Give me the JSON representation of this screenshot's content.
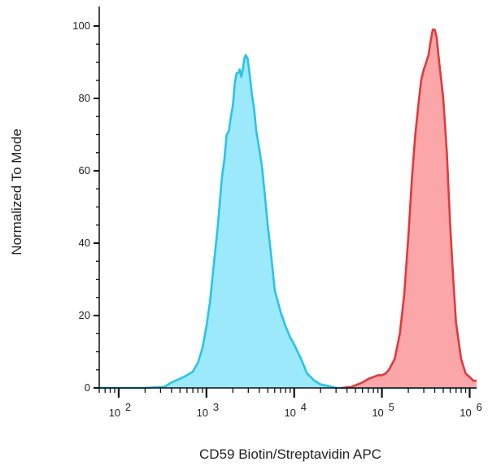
{
  "chart_data": {
    "type": "area",
    "title": "",
    "xlabel": "CD59 Biotin/Streptavidin APC",
    "ylabel": "Normalized To Mode",
    "xscale": "log",
    "xlim": [
      60,
      1200000
    ],
    "ylim": [
      0,
      100
    ],
    "yticks": [
      0,
      20,
      40,
      60,
      80,
      100
    ],
    "xtick_labels": [
      {
        "base": "10",
        "exp": "2",
        "value": 100
      },
      {
        "base": "10",
        "exp": "3",
        "value": 1000
      },
      {
        "base": "10",
        "exp": "4",
        "value": 10000
      },
      {
        "base": "10",
        "exp": "5",
        "value": 100000
      },
      {
        "base": "10",
        "exp": "6",
        "value": 1000000
      }
    ],
    "grid": false,
    "legend": false,
    "series": [
      {
        "color": "#29c4e6",
        "fill": "#9be9fb",
        "points": [
          [
            60,
            0
          ],
          [
            200,
            0
          ],
          [
            330,
            0.3
          ],
          [
            400,
            1.5
          ],
          [
            550,
            3
          ],
          [
            700,
            4.5
          ],
          [
            800,
            7
          ],
          [
            900,
            11
          ],
          [
            1000,
            17
          ],
          [
            1100,
            24
          ],
          [
            1200,
            33
          ],
          [
            1350,
            45
          ],
          [
            1500,
            58
          ],
          [
            1600,
            63
          ],
          [
            1700,
            70
          ],
          [
            1800,
            71
          ],
          [
            1900,
            75
          ],
          [
            2000,
            78
          ],
          [
            2100,
            84
          ],
          [
            2200,
            87
          ],
          [
            2300,
            87
          ],
          [
            2400,
            88
          ],
          [
            2500,
            86
          ],
          [
            2600,
            88
          ],
          [
            2700,
            91
          ],
          [
            2800,
            92
          ],
          [
            2950,
            91
          ],
          [
            3100,
            87
          ],
          [
            3300,
            81
          ],
          [
            3500,
            77
          ],
          [
            3700,
            71
          ],
          [
            4000,
            66
          ],
          [
            4300,
            61
          ],
          [
            4600,
            54
          ],
          [
            5000,
            45
          ],
          [
            5500,
            36
          ],
          [
            6000,
            27
          ],
          [
            7000,
            21
          ],
          [
            8000,
            17
          ],
          [
            9000,
            14
          ],
          [
            10000,
            12
          ],
          [
            12000,
            8
          ],
          [
            14000,
            4
          ],
          [
            17000,
            2
          ],
          [
            20000,
            1
          ],
          [
            25000,
            0.5
          ],
          [
            30000,
            0
          ],
          [
            1200000,
            0
          ]
        ]
      },
      {
        "color": "#e03a3e",
        "fill": "#fba6a8",
        "points": [
          [
            35000,
            0
          ],
          [
            45000,
            0.3
          ],
          [
            60000,
            1.5
          ],
          [
            70000,
            2.5
          ],
          [
            80000,
            3
          ],
          [
            90000,
            3.5
          ],
          [
            100000,
            3.5
          ],
          [
            110000,
            4
          ],
          [
            120000,
            5
          ],
          [
            140000,
            8
          ],
          [
            160000,
            15
          ],
          [
            180000,
            26
          ],
          [
            200000,
            42
          ],
          [
            220000,
            58
          ],
          [
            240000,
            70
          ],
          [
            260000,
            78
          ],
          [
            280000,
            85
          ],
          [
            300000,
            88
          ],
          [
            320000,
            90
          ],
          [
            340000,
            92
          ],
          [
            360000,
            96
          ],
          [
            380000,
            99
          ],
          [
            400000,
            99
          ],
          [
            420000,
            97
          ],
          [
            450000,
            90
          ],
          [
            500000,
            80
          ],
          [
            550000,
            65
          ],
          [
            600000,
            45
          ],
          [
            650000,
            30
          ],
          [
            700000,
            18
          ],
          [
            800000,
            8
          ],
          [
            900000,
            4
          ],
          [
            1000000,
            3
          ],
          [
            1100000,
            2
          ],
          [
            1200000,
            2
          ]
        ]
      }
    ]
  }
}
